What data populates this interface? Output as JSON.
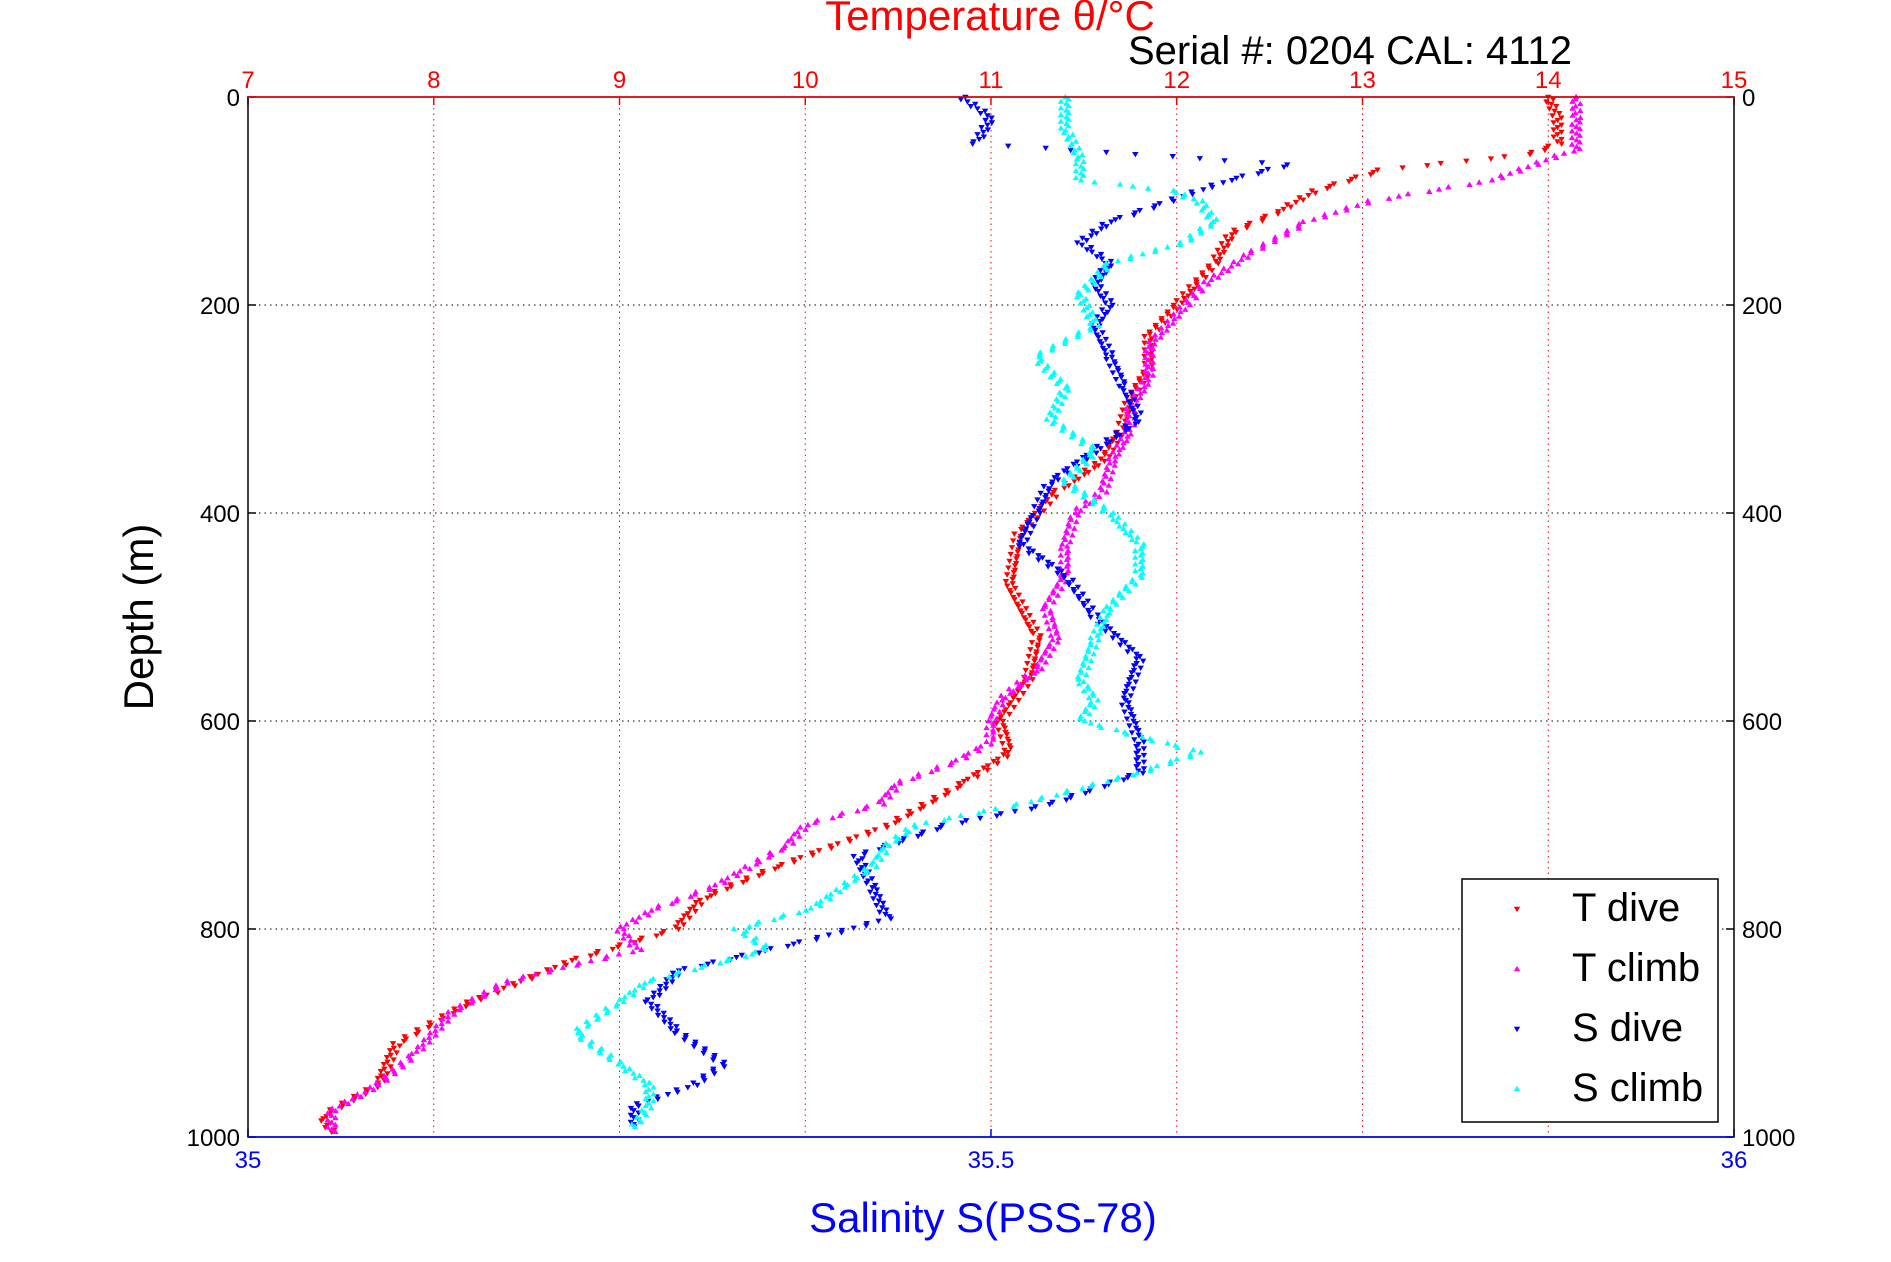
{
  "header": {
    "title": "Temperature θ/°C",
    "serial_label": "Serial #: 0204  CAL: 4112"
  },
  "colors": {
    "temperature_axis": "#ff0000",
    "salinity_axis": "#0000ff",
    "grid": "#000000",
    "background": "#ffffff"
  },
  "chart_data": {
    "type": "scatter",
    "title": "Temperature θ/°C",
    "xlabel": "Salinity S(PSS-78)",
    "ylabel": "Depth (m)",
    "x_top": {
      "label": "Temperature θ/°C",
      "lim": [
        7,
        15
      ],
      "ticks": [
        "7",
        "8",
        "9",
        "10",
        "11",
        "12",
        "13",
        "14",
        "15"
      ]
    },
    "x_bottom": {
      "label": "Salinity S(PSS-78)",
      "lim": [
        35,
        36
      ],
      "ticks": [
        "35",
        "35.5",
        "36"
      ]
    },
    "y": {
      "lim": [
        0,
        1000
      ],
      "reversed": true,
      "ticks": [
        "0",
        "200",
        "400",
        "600",
        "800",
        "1000"
      ]
    },
    "grid": "dotted",
    "legend_position": "bottom-right",
    "series": [
      {
        "name": "T dive",
        "axis": "temperature",
        "color": "#ff0000",
        "marker": "triangle-down",
        "depth": [
          0,
          20,
          45,
          55,
          70,
          90,
          110,
          130,
          160,
          180,
          200,
          230,
          260,
          290,
          320,
          350,
          380,
          420,
          470,
          520,
          560,
          600,
          630,
          660,
          700,
          740,
          770,
          800,
          830,
          870,
          910,
          950,
          980,
          995
        ],
        "values": [
          14.0,
          14.05,
          14.05,
          13.9,
          13.1,
          12.75,
          12.55,
          12.3,
          12.2,
          12.1,
          12.0,
          11.85,
          11.85,
          11.75,
          11.7,
          11.6,
          11.35,
          11.15,
          11.1,
          11.25,
          11.2,
          11.05,
          11.1,
          10.85,
          10.45,
          9.85,
          9.45,
          9.3,
          8.75,
          8.2,
          7.8,
          7.7,
          7.4,
          7.45
        ]
      },
      {
        "name": "T climb",
        "axis": "temperature",
        "color": "#ff00ff",
        "marker": "triangle-up",
        "depth": [
          995,
          975,
          950,
          920,
          880,
          850,
          820,
          800,
          780,
          760,
          740,
          720,
          700,
          680,
          660,
          640,
          620,
          600,
          580,
          550,
          520,
          490,
          460,
          430,
          400,
          380,
          350,
          320,
          300,
          270,
          240,
          200,
          180,
          150,
          120,
          100,
          80,
          50,
          20,
          0
        ],
        "values": [
          7.45,
          7.45,
          7.7,
          7.9,
          8.1,
          8.4,
          9.1,
          9.0,
          9.2,
          9.5,
          9.7,
          9.9,
          10.0,
          10.4,
          10.5,
          10.8,
          11.0,
          11.0,
          11.05,
          11.25,
          11.35,
          11.3,
          11.4,
          11.4,
          11.45,
          11.6,
          11.65,
          11.75,
          11.75,
          11.85,
          11.85,
          12.05,
          12.15,
          12.4,
          12.7,
          13.05,
          13.7,
          14.15,
          14.15,
          14.15
        ]
      },
      {
        "name": "S dive",
        "axis": "salinity",
        "color": "#0000ff",
        "marker": "triangle-down",
        "depth": [
          0,
          20,
          45,
          55,
          65,
          80,
          100,
          120,
          140,
          160,
          180,
          200,
          220,
          250,
          280,
          310,
          340,
          370,
          400,
          430,
          460,
          500,
          540,
          580,
          620,
          650,
          680,
          700,
          730,
          760,
          790,
          810,
          840,
          870,
          900,
          930,
          950,
          970,
          990
        ],
        "values": [
          35.48,
          35.5,
          35.49,
          35.6,
          35.7,
          35.66,
          35.62,
          35.58,
          35.56,
          35.58,
          35.57,
          35.58,
          35.57,
          35.58,
          35.59,
          35.6,
          35.57,
          35.54,
          35.53,
          35.52,
          35.55,
          35.57,
          35.6,
          35.59,
          35.6,
          35.6,
          35.54,
          35.47,
          35.41,
          35.42,
          35.43,
          35.38,
          35.29,
          35.27,
          35.29,
          35.32,
          35.3,
          35.26,
          35.26
        ]
      },
      {
        "name": "S climb",
        "axis": "salinity",
        "color": "#00ffff",
        "marker": "triangle-up",
        "depth": [
          990,
          970,
          950,
          930,
          900,
          870,
          850,
          820,
          800,
          780,
          760,
          740,
          720,
          700,
          680,
          650,
          630,
          600,
          580,
          560,
          520,
          490,
          460,
          430,
          400,
          370,
          340,
          310,
          280,
          250,
          220,
          190,
          160,
          140,
          120,
          100,
          90,
          80,
          60,
          30,
          0
        ],
        "values": [
          35.26,
          35.27,
          35.27,
          35.25,
          35.22,
          35.25,
          35.27,
          35.35,
          35.33,
          35.38,
          35.4,
          35.42,
          35.43,
          35.45,
          35.52,
          35.6,
          35.64,
          35.56,
          35.57,
          35.56,
          35.57,
          35.58,
          35.6,
          35.6,
          35.58,
          35.55,
          35.57,
          35.54,
          35.55,
          35.53,
          35.57,
          35.56,
          35.58,
          35.63,
          35.65,
          35.64,
          35.62,
          35.56,
          35.56,
          35.55,
          35.55
        ]
      }
    ]
  }
}
